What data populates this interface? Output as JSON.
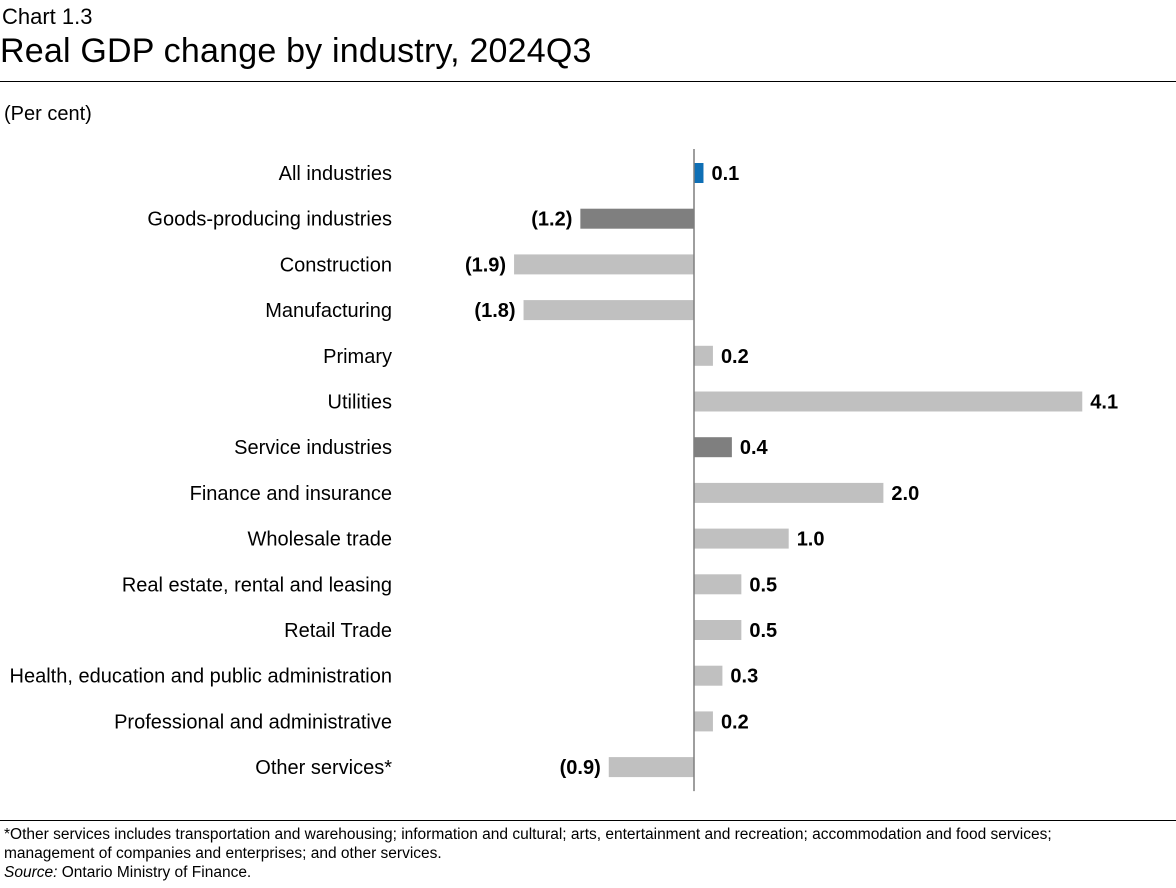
{
  "header": {
    "chart_number": "Chart 1.3",
    "title": "Real GDP change by industry, 2024Q3"
  },
  "units_label": "(Per cent)",
  "chart_data": {
    "type": "bar",
    "orientation": "horizontal",
    "title": "Real GDP change by industry, 2024Q3",
    "ylabel": "(Per cent)",
    "xlim": [
      -2.2,
      4.4
    ],
    "categories": [
      "All industries",
      "Goods-producing industries",
      "Construction",
      "Manufacturing",
      "Primary",
      "Utilities",
      "Service industries",
      "Finance and insurance",
      "Wholesale trade",
      "Real estate, rental and leasing",
      "Retail Trade",
      "Health, education and public administration",
      "Professional and administrative",
      "Other services*"
    ],
    "values": [
      0.1,
      -1.2,
      -1.9,
      -1.8,
      0.2,
      4.1,
      0.4,
      2.0,
      1.0,
      0.5,
      0.5,
      0.3,
      0.2,
      -0.9
    ],
    "value_labels": [
      "0.1",
      "(1.2)",
      "(1.9)",
      "(1.8)",
      "0.2",
      "4.1",
      "0.4",
      "2.0",
      "1.0",
      "0.5",
      "0.5",
      "0.3",
      "0.2",
      "(0.9)"
    ],
    "groups": [
      "total",
      "aggregate",
      "detail",
      "detail",
      "detail",
      "detail",
      "aggregate",
      "detail",
      "detail",
      "detail",
      "detail",
      "detail",
      "detail",
      "detail"
    ],
    "colors": {
      "total": "#0f6fb5",
      "aggregate": "#7f7f7f",
      "detail": "#c0c0c0",
      "axis": "#7f7f7f"
    }
  },
  "footer": {
    "note_line1": "*Other services includes transportation and warehousing; information and cultural; arts, entertainment and recreation; accommodation and food services;",
    "note_line2": "management of companies and enterprises; and other services.",
    "source_label": "Source:",
    "source_text": " Ontario Ministry of Finance."
  }
}
